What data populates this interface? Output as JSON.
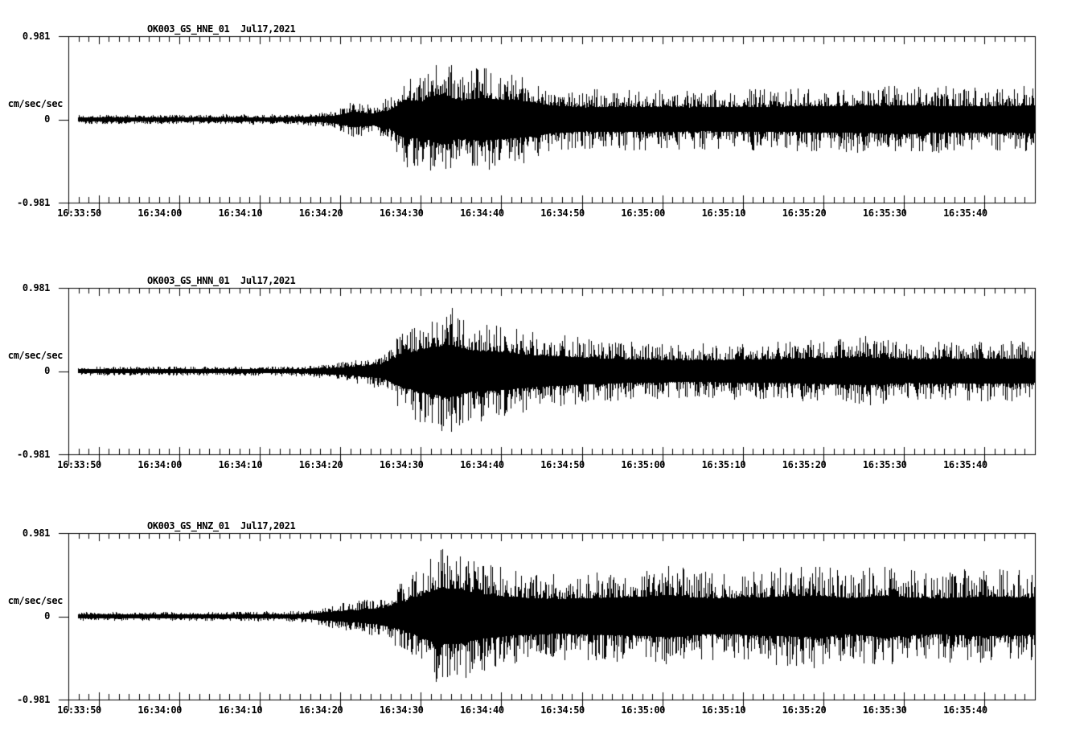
{
  "page": {
    "background": "#ffffff",
    "foreground": "#000000",
    "kind": "three-component seismic accelerogram record"
  },
  "chart_data": [
    {
      "type": "line",
      "chart_kind": "seismogram",
      "title": "OK003_GS_HNE_01  Jul17,2021",
      "channel": "HNE",
      "date_label": "Jul17,2021",
      "ylabel": "cm/sec/sec",
      "y_tick_labels": [
        "0.981",
        "0",
        "-0.981"
      ],
      "ylim": [
        -0.981,
        0.981
      ],
      "x_tick_labels": [
        "16:33:50",
        "16:34:00",
        "16:34:10",
        "16:34:20",
        "16:34:30",
        "16:34:40",
        "16:34:50",
        "16:35:00",
        "16:35:10",
        "16:35:20",
        "16:35:30",
        "16:35:40"
      ],
      "x_span_seconds": 120,
      "x_first_tick_offset_seconds": 3.75,
      "x_major_interval_seconds": 10,
      "x_minor_interval_seconds": 1.25,
      "grid": false,
      "legend": "none",
      "envelope_peak_cm_s2": [
        [
          0,
          0.057
        ],
        [
          28,
          0.062
        ],
        [
          33,
          0.104
        ],
        [
          35.5,
          0.237
        ],
        [
          37.5,
          0.171
        ],
        [
          40,
          0.284
        ],
        [
          41.8,
          0.588
        ],
        [
          44,
          0.55
        ],
        [
          46.3,
          0.758
        ],
        [
          48.5,
          0.569
        ],
        [
          51,
          0.645
        ],
        [
          54,
          0.588
        ],
        [
          57.5,
          0.521
        ],
        [
          60,
          0.417
        ],
        [
          64,
          0.36
        ],
        [
          70,
          0.379
        ],
        [
          78,
          0.36
        ],
        [
          88,
          0.379
        ],
        [
          96,
          0.398
        ],
        [
          104,
          0.417
        ],
        [
          112,
          0.389
        ],
        [
          120,
          0.417
        ]
      ]
    },
    {
      "type": "line",
      "chart_kind": "seismogram",
      "title": "OK003_GS_HNN_01  Jul17,2021",
      "channel": "HNN",
      "date_label": "Jul17,2021",
      "ylabel": "cm/sec/sec",
      "y_tick_labels": [
        "0.981",
        "0",
        "-0.981"
      ],
      "ylim": [
        -0.981,
        0.981
      ],
      "x_tick_labels": [
        "16:33:50",
        "16:34:00",
        "16:34:10",
        "16:34:20",
        "16:34:30",
        "16:34:40",
        "16:34:50",
        "16:35:00",
        "16:35:10",
        "16:35:20",
        "16:35:30",
        "16:35:40"
      ],
      "x_span_seconds": 120,
      "x_first_tick_offset_seconds": 3.75,
      "x_major_interval_seconds": 10,
      "x_minor_interval_seconds": 1.25,
      "grid": false,
      "legend": "none",
      "envelope_peak_cm_s2": [
        [
          0,
          0.055
        ],
        [
          28,
          0.06
        ],
        [
          33,
          0.095
        ],
        [
          36,
          0.15
        ],
        [
          39,
          0.22
        ],
        [
          41.5,
          0.5
        ],
        [
          44.5,
          0.68
        ],
        [
          47.5,
          0.777
        ],
        [
          50,
          0.62
        ],
        [
          53,
          0.58
        ],
        [
          56.5,
          0.5
        ],
        [
          60,
          0.45
        ],
        [
          64,
          0.4
        ],
        [
          69,
          0.36
        ],
        [
          75,
          0.33
        ],
        [
          82,
          0.34
        ],
        [
          89,
          0.36
        ],
        [
          96,
          0.4
        ],
        [
          99,
          0.42
        ],
        [
          104,
          0.36
        ],
        [
          110,
          0.36
        ],
        [
          115,
          0.38
        ],
        [
          120,
          0.36
        ]
      ]
    },
    {
      "type": "line",
      "chart_kind": "seismogram",
      "title": "OK003_GS_HNZ_01  Jul17,2021",
      "channel": "HNZ",
      "date_label": "Jul17,2021",
      "ylabel": "cm/sec/sec",
      "y_tick_labels": [
        "0.981",
        "0",
        "-0.981"
      ],
      "ylim": [
        -0.981,
        0.981
      ],
      "x_tick_labels": [
        "16:33:50",
        "16:34:00",
        "16:34:10",
        "16:34:20",
        "16:34:30",
        "16:34:40",
        "16:34:50",
        "16:35:00",
        "16:35:10",
        "16:35:20",
        "16:35:30",
        "16:35:40"
      ],
      "x_span_seconds": 120,
      "x_first_tick_offset_seconds": 3.75,
      "x_major_interval_seconds": 10,
      "x_minor_interval_seconds": 1.25,
      "grid": false,
      "legend": "none",
      "envelope_peak_cm_s2": [
        [
          0,
          0.05
        ],
        [
          27,
          0.06
        ],
        [
          30,
          0.08
        ],
        [
          33,
          0.15
        ],
        [
          36,
          0.19
        ],
        [
          39,
          0.26
        ],
        [
          41.5,
          0.42
        ],
        [
          43.5,
          0.6
        ],
        [
          46,
          0.85
        ],
        [
          48.5,
          0.82
        ],
        [
          51.5,
          0.66
        ],
        [
          55,
          0.58
        ],
        [
          60,
          0.52
        ],
        [
          65,
          0.55
        ],
        [
          70,
          0.58
        ],
        [
          75,
          0.63
        ],
        [
          79,
          0.54
        ],
        [
          84,
          0.56
        ],
        [
          89,
          0.6
        ],
        [
          93,
          0.63
        ],
        [
          97,
          0.54
        ],
        [
          101.5,
          0.63
        ],
        [
          106,
          0.54
        ],
        [
          110,
          0.56
        ],
        [
          114,
          0.6
        ],
        [
          120,
          0.54
        ]
      ]
    }
  ]
}
